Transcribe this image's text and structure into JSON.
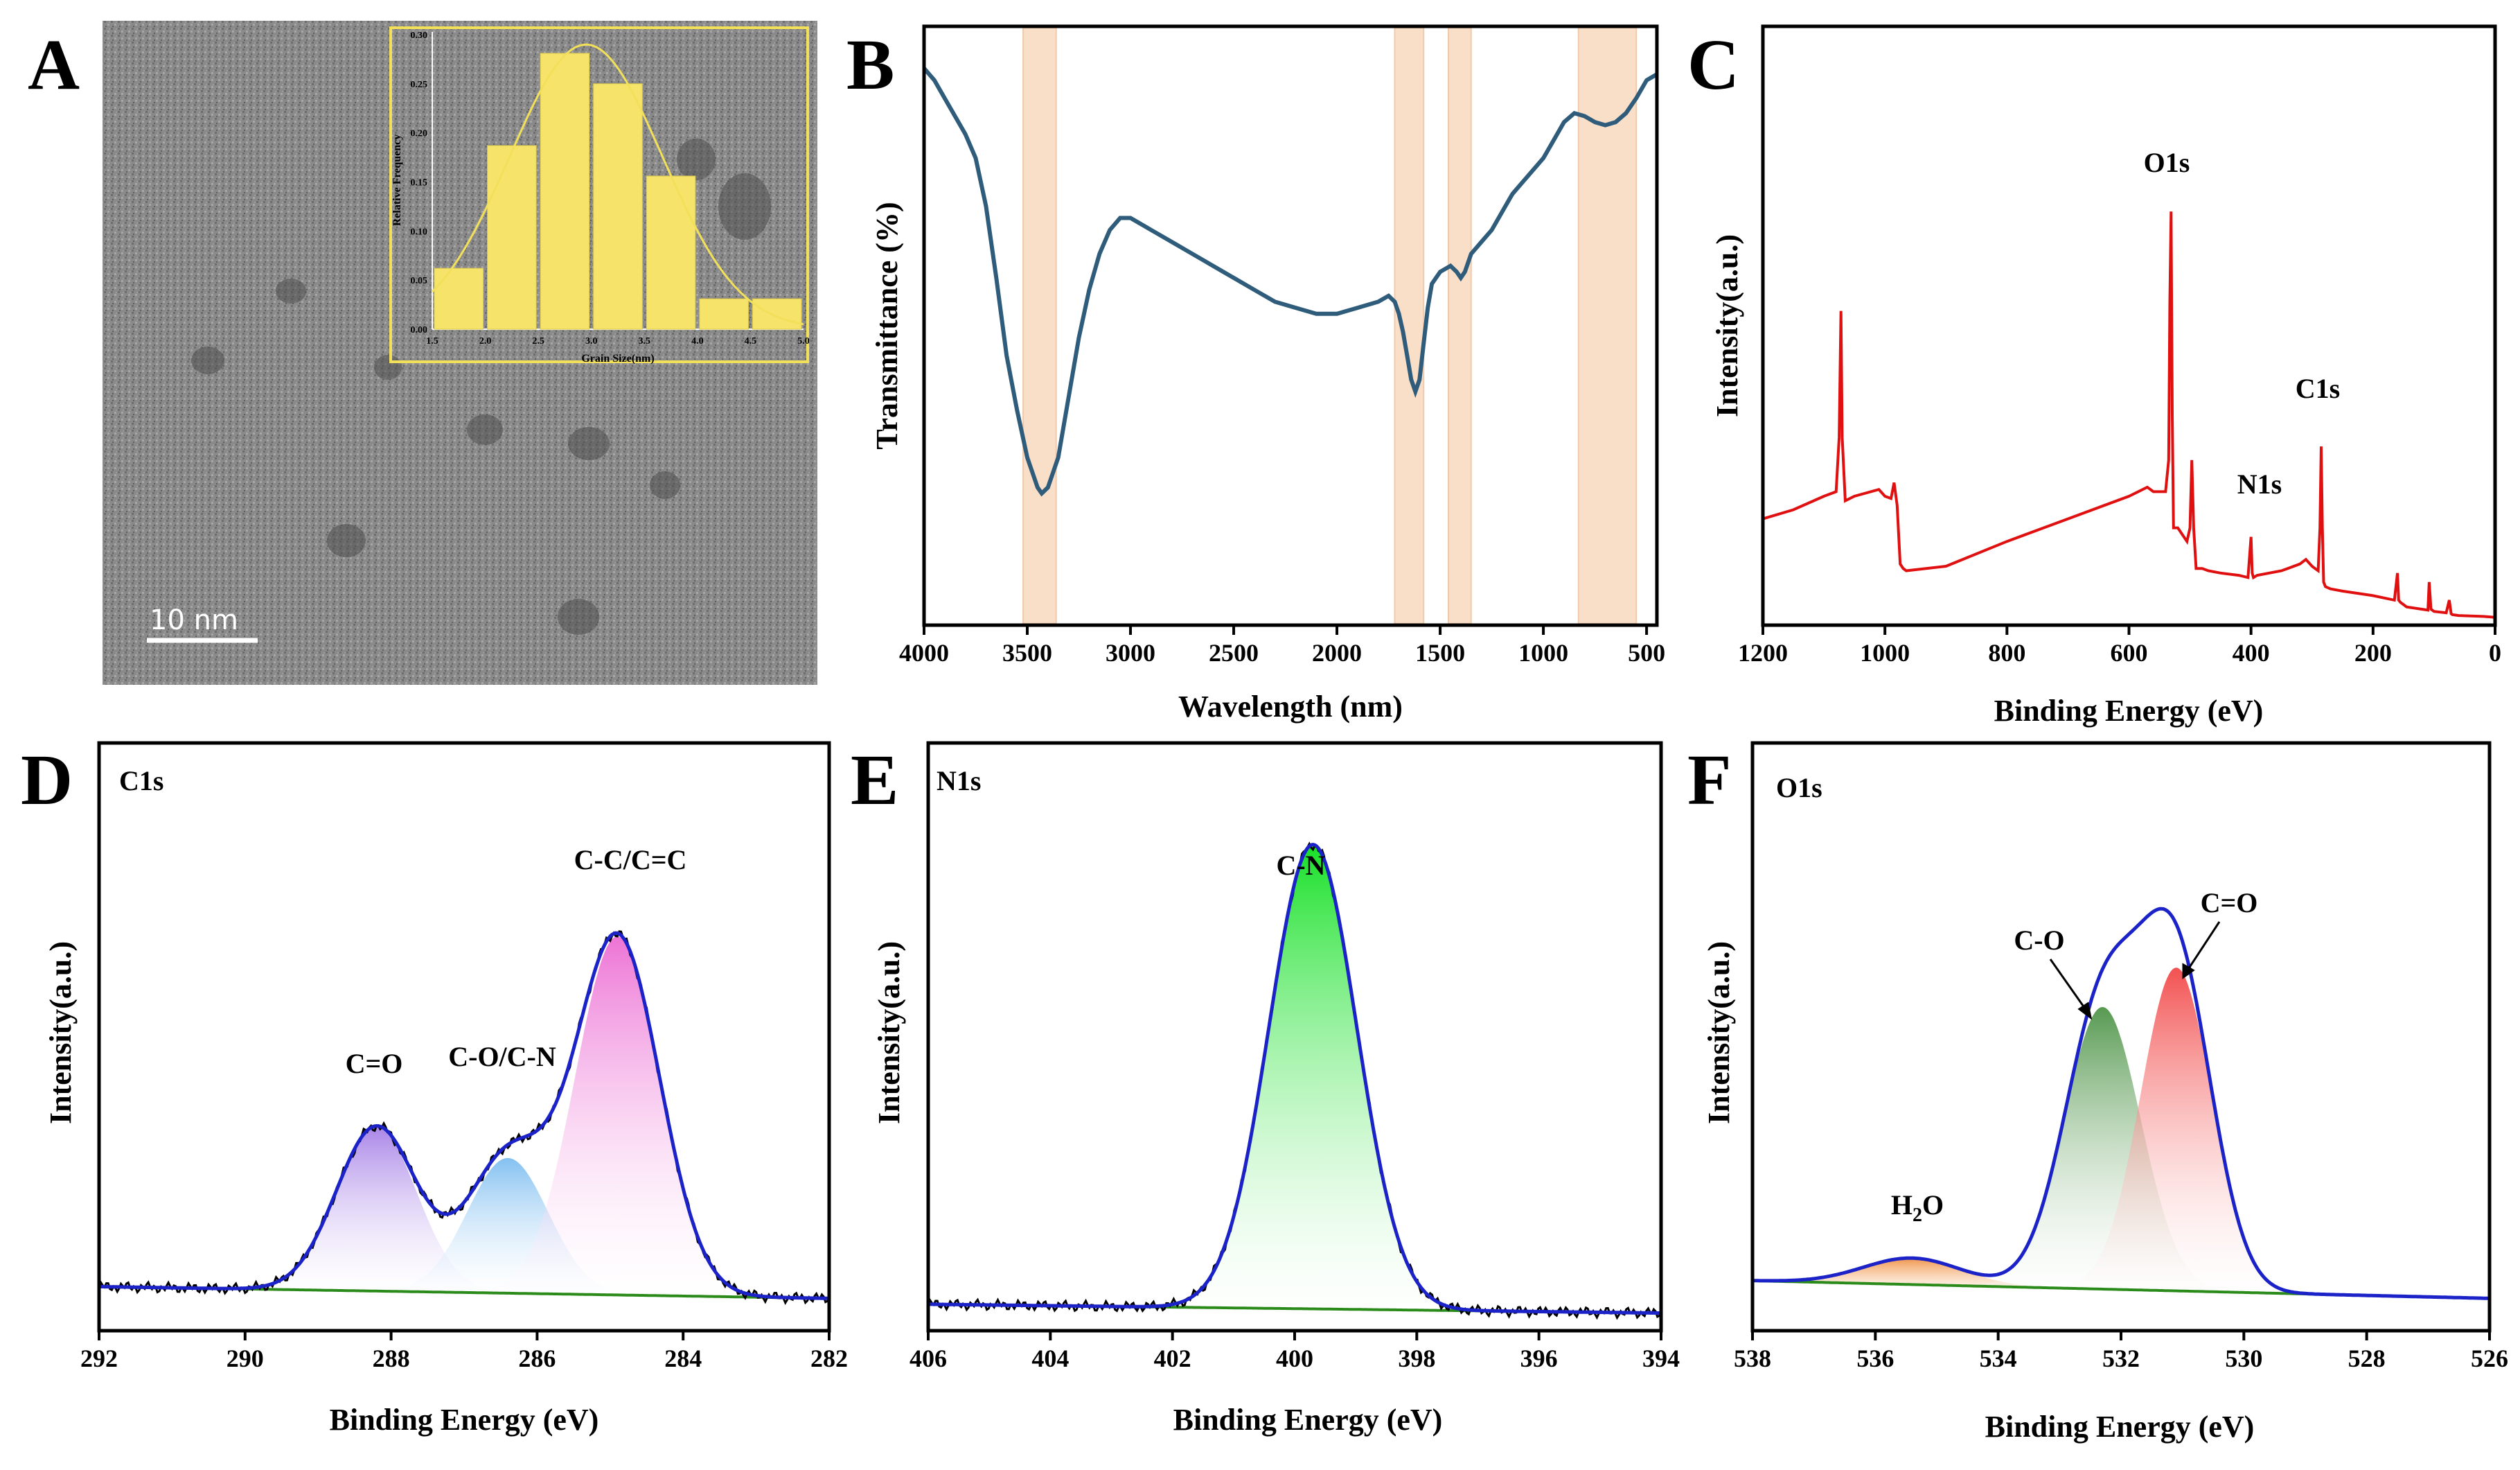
{
  "chart_data": [
    {
      "panel": "A",
      "type": "bar",
      "background": "TEM micrograph",
      "scale_bar": "10  nm",
      "inset": {
        "xlabel": "Grain Size(nm)",
        "ylabel": "Relative Frequency",
        "xlim": [
          1.5,
          5.0
        ],
        "ylim": [
          0,
          0.3
        ],
        "xticks": [
          "1.5",
          "2.0",
          "2.5",
          "3.0",
          "3.5",
          "4.0",
          "4.5",
          "5.0"
        ],
        "yticks": [
          "0.00",
          "0.05",
          "0.10",
          "0.15",
          "0.20",
          "0.25",
          "0.30"
        ],
        "bins": [
          {
            "center": 1.75,
            "value": 0.062
          },
          {
            "center": 2.25,
            "value": 0.187
          },
          {
            "center": 2.75,
            "value": 0.281
          },
          {
            "center": 3.25,
            "value": 0.25
          },
          {
            "center": 3.75,
            "value": 0.156
          },
          {
            "center": 4.25,
            "value": 0.031
          },
          {
            "center": 4.75,
            "value": 0.031
          }
        ],
        "fit": {
          "type": "gaussian",
          "mean": 2.95,
          "sigma": 0.72,
          "peak": 0.29
        }
      }
    },
    {
      "panel": "B",
      "type": "line",
      "xlabel": "Wavelength (nm)",
      "ylabel": "Transmittance (%)",
      "xlim": [
        4000,
        450
      ],
      "xticks": [
        4000,
        3500,
        3000,
        2500,
        2000,
        1500,
        1000,
        500
      ],
      "ylim": [
        0,
        100
      ],
      "line_color": "#2f5c7a",
      "bands": [
        {
          "x1": 3520,
          "x2": 3360
        },
        {
          "x1": 1720,
          "x2": 1580
        },
        {
          "x1": 1460,
          "x2": 1350
        },
        {
          "x1": 830,
          "x2": 550
        }
      ],
      "x": [
        4000,
        3950,
        3900,
        3850,
        3800,
        3750,
        3700,
        3650,
        3600,
        3550,
        3500,
        3450,
        3430,
        3400,
        3350,
        3300,
        3250,
        3200,
        3150,
        3100,
        3050,
        3000,
        2950,
        2900,
        2800,
        2700,
        2600,
        2500,
        2400,
        2300,
        2200,
        2100,
        2000,
        1900,
        1800,
        1750,
        1720,
        1700,
        1680,
        1660,
        1640,
        1620,
        1600,
        1580,
        1560,
        1540,
        1500,
        1450,
        1420,
        1400,
        1380,
        1350,
        1300,
        1250,
        1200,
        1150,
        1100,
        1000,
        950,
        900,
        850,
        800,
        750,
        700,
        650,
        600,
        550,
        500,
        450
      ],
      "y": [
        93,
        91,
        88,
        85,
        82,
        78,
        70,
        58,
        45,
        36,
        28,
        23,
        22,
        23,
        28,
        38,
        48,
        56,
        62,
        66,
        68,
        68,
        67,
        66,
        64,
        62,
        60,
        58,
        56,
        54,
        53,
        52,
        52,
        53,
        54,
        55,
        54,
        52,
        49,
        45,
        41,
        39,
        41,
        47,
        53,
        57,
        59,
        60,
        59,
        58,
        59,
        62,
        64,
        66,
        69,
        72,
        74,
        78,
        81,
        84,
        85.5,
        85,
        84,
        83.5,
        84,
        85.5,
        88,
        91,
        92
      ],
      "categories": [],
      "values": []
    },
    {
      "panel": "C",
      "type": "line",
      "xlabel": "Binding Energy (eV)",
      "ylabel": "Intensity(a.u.)",
      "xlim": [
        1200,
        0
      ],
      "xticks": [
        1200,
        1000,
        800,
        600,
        400,
        200,
        0
      ],
      "ylim": [
        0,
        100
      ],
      "line_color": "#e01010",
      "annotations": [
        {
          "text": "O1s",
          "x": 531
        },
        {
          "text": "N1s",
          "x": 399
        },
        {
          "text": "C1s",
          "x": 285
        }
      ],
      "x": [
        1200,
        1150,
        1100,
        1080,
        1075,
        1072,
        1070,
        1065,
        1050,
        1010,
        1000,
        990,
        985,
        980,
        975,
        970,
        965,
        900,
        800,
        700,
        600,
        570,
        560,
        550,
        540,
        535,
        533,
        531,
        529,
        527,
        520,
        505,
        500,
        497,
        494,
        490,
        480,
        470,
        450,
        420,
        405,
        400,
        398,
        396,
        390,
        350,
        320,
        310,
        300,
        295,
        290,
        287,
        285,
        283,
        281,
        278,
        270,
        250,
        200,
        165,
        160,
        158,
        155,
        150,
        145,
        120,
        110,
        108,
        105,
        100,
        80,
        75,
        72,
        70,
        60,
        40,
        20,
        10,
        0
      ],
      "y": [
        22,
        24,
        27,
        28,
        40,
        68,
        40,
        26,
        27,
        28.5,
        27,
        26.5,
        30,
        25,
        12,
        11,
        10.5,
        11.5,
        17,
        22,
        27,
        29,
        28,
        28,
        28,
        35,
        70,
        90,
        45,
        20,
        20,
        17,
        20,
        35,
        20,
        11,
        11,
        10.5,
        10,
        9.5,
        9,
        18,
        10,
        9,
        9.5,
        10.5,
        12,
        13,
        11.5,
        11,
        10.5,
        20,
        38,
        20,
        8,
        7,
        6.5,
        6,
        5,
        4,
        10,
        4,
        3.5,
        3,
        2.5,
        2,
        1.8,
        8,
        2,
        1.5,
        1.2,
        4,
        1,
        0.8,
        0.6,
        0.5,
        0.4,
        0.3,
        0.2
      ],
      "categories": [],
      "values": []
    },
    {
      "panel": "D",
      "type": "line",
      "title": "C1s",
      "xlabel": "Binding Energy (eV)",
      "ylabel": "Intensity(a.u.)",
      "xlim": [
        292,
        282
      ],
      "xticks": [
        292,
        290,
        288,
        286,
        284,
        282
      ],
      "ylim": [
        0,
        100
      ],
      "series": [
        {
          "name": "C=O",
          "center": 288.2,
          "sigma": 0.55,
          "amplitude": 28,
          "color": "#b38ee8"
        },
        {
          "name": "C-O/C-N",
          "center": 286.4,
          "sigma": 0.55,
          "amplitude": 23,
          "color": "#92c6f0"
        },
        {
          "name": "C-C/C=C",
          "center": 284.9,
          "sigma": 0.58,
          "amplitude": 61,
          "color": "#ee82d8"
        }
      ],
      "background_line": {
        "start": 7.5,
        "end": 5.5,
        "color": "#2a8a1a"
      },
      "envelope_color": "#1a22c8",
      "categories": [],
      "values": []
    },
    {
      "panel": "E",
      "type": "line",
      "title": "N1s",
      "xlabel": "Binding Energy (eV)",
      "ylabel": "Intensity(a.u.)",
      "xlim": [
        406,
        394
      ],
      "xticks": [
        406,
        404,
        402,
        400,
        398,
        396,
        394
      ],
      "ylim": [
        0,
        100
      ],
      "series": [
        {
          "name": "C-N",
          "center": 399.7,
          "sigma": 0.72,
          "amplitude": 79,
          "color": "#2ee03a"
        }
      ],
      "background_line": {
        "start": 4.5,
        "end": 3.0,
        "color": "#2a8a1a"
      },
      "envelope_color": "#1a22c8",
      "categories": [],
      "values": []
    },
    {
      "panel": "F",
      "type": "line",
      "title": "O1s",
      "xlabel": "Binding Energy (eV)",
      "ylabel": "Intensity(a.u.)",
      "xlim": [
        538,
        526
      ],
      "xticks": [
        538,
        536,
        534,
        532,
        530,
        528,
        526
      ],
      "ylim": [
        0,
        100
      ],
      "series": [
        {
          "name": "H2O",
          "center": 535.4,
          "sigma": 0.8,
          "amplitude": 4.5,
          "color": "#f0a060"
        },
        {
          "name": "C-O",
          "center": 532.3,
          "sigma": 0.62,
          "amplitude": 48,
          "color": "#6fa868"
        },
        {
          "name": "C=O",
          "center": 531.1,
          "sigma": 0.58,
          "amplitude": 55,
          "color": "#f26a6a"
        }
      ],
      "background_line": {
        "start": 8.5,
        "end": 5.5,
        "color": "#2a8a1a"
      },
      "envelope_color": "#1a22c8",
      "categories": [],
      "values": []
    }
  ],
  "labels": {
    "A": "A",
    "B": "B",
    "C": "C",
    "D": "D",
    "E": "E",
    "F": "F",
    "scale_bar": "10  nm",
    "inset_xlabel": "Grain Size(nm)",
    "inset_ylabel": "Relative Frequency",
    "b_xlabel": "Wavelength (nm)",
    "b_ylabel": "Transmittance (%)",
    "c_xlabel": "Binding Energy (eV)",
    "c_ylabel": "Intensity(a.u.)",
    "c_o1s": "O1s",
    "c_n1s": "N1s",
    "c_c1s": "C1s",
    "d_title": "C1s",
    "d_xlabel": "Binding Energy (eV)",
    "d_ylabel": "Intensity(a.u.)",
    "d_peak1": "C=O",
    "d_peak2": "C-O/C-N",
    "d_peak3": "C-C/C=C",
    "e_title": "N1s",
    "e_xlabel": "Binding Energy (eV)",
    "e_ylabel": "Intensity(a.u.)",
    "e_peak1": "C-N",
    "f_title": "O1s",
    "f_xlabel": "Binding Energy (eV)",
    "f_ylabel": "Intensity(a.u.)",
    "f_peak_h2o_main": "H",
    "f_peak_h2o_sub": "2",
    "f_peak_h2o_end": "O",
    "f_peak2": "C-O",
    "f_peak3": "C=O"
  }
}
